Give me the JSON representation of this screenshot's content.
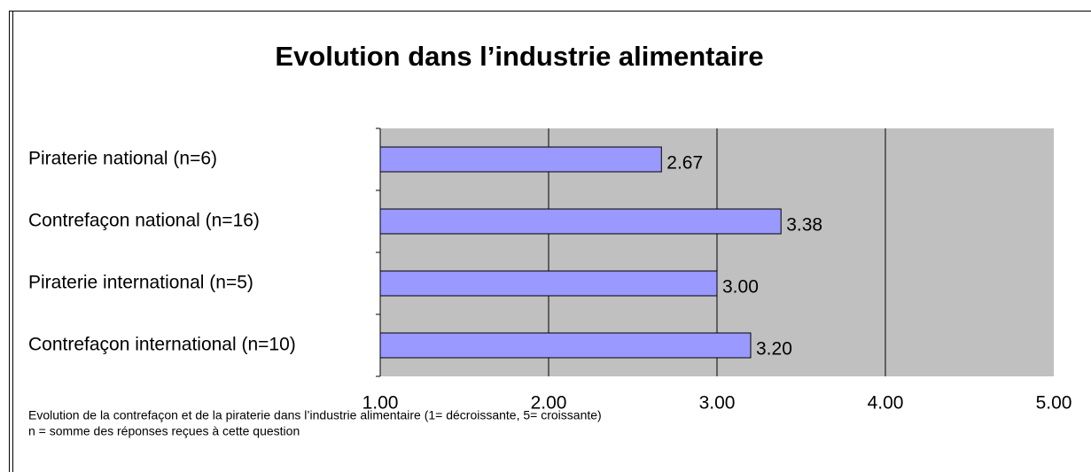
{
  "chart_data": {
    "type": "barh",
    "title": "Evolution dans l’industrie alimentaire",
    "categories": [
      "Piraterie national (n=6)",
      "Contrefaçon national (n=16)",
      "Piraterie international (n=5)",
      "Contrefaçon international (n=10)"
    ],
    "values": [
      2.67,
      3.38,
      3.0,
      3.2
    ],
    "value_labels": [
      "2.67",
      "3.38",
      "3.00",
      "3.20"
    ],
    "color": "#9999ff",
    "xlim": [
      1,
      5
    ],
    "xticks": [
      {
        "value": 1,
        "label": "1.00"
      },
      {
        "value": 2,
        "label": "2.00"
      },
      {
        "value": 3,
        "label": "3.00"
      },
      {
        "value": 4,
        "label": "4.00"
      },
      {
        "value": 5,
        "label": "5.00"
      }
    ],
    "grid": true,
    "notes": [
      "Evolution de la contrefaçon et de la piraterie dans l’industrie alimentaire (1= décroissante, 5= croissante)",
      "n = somme des réponses reçues à cette question"
    ]
  }
}
